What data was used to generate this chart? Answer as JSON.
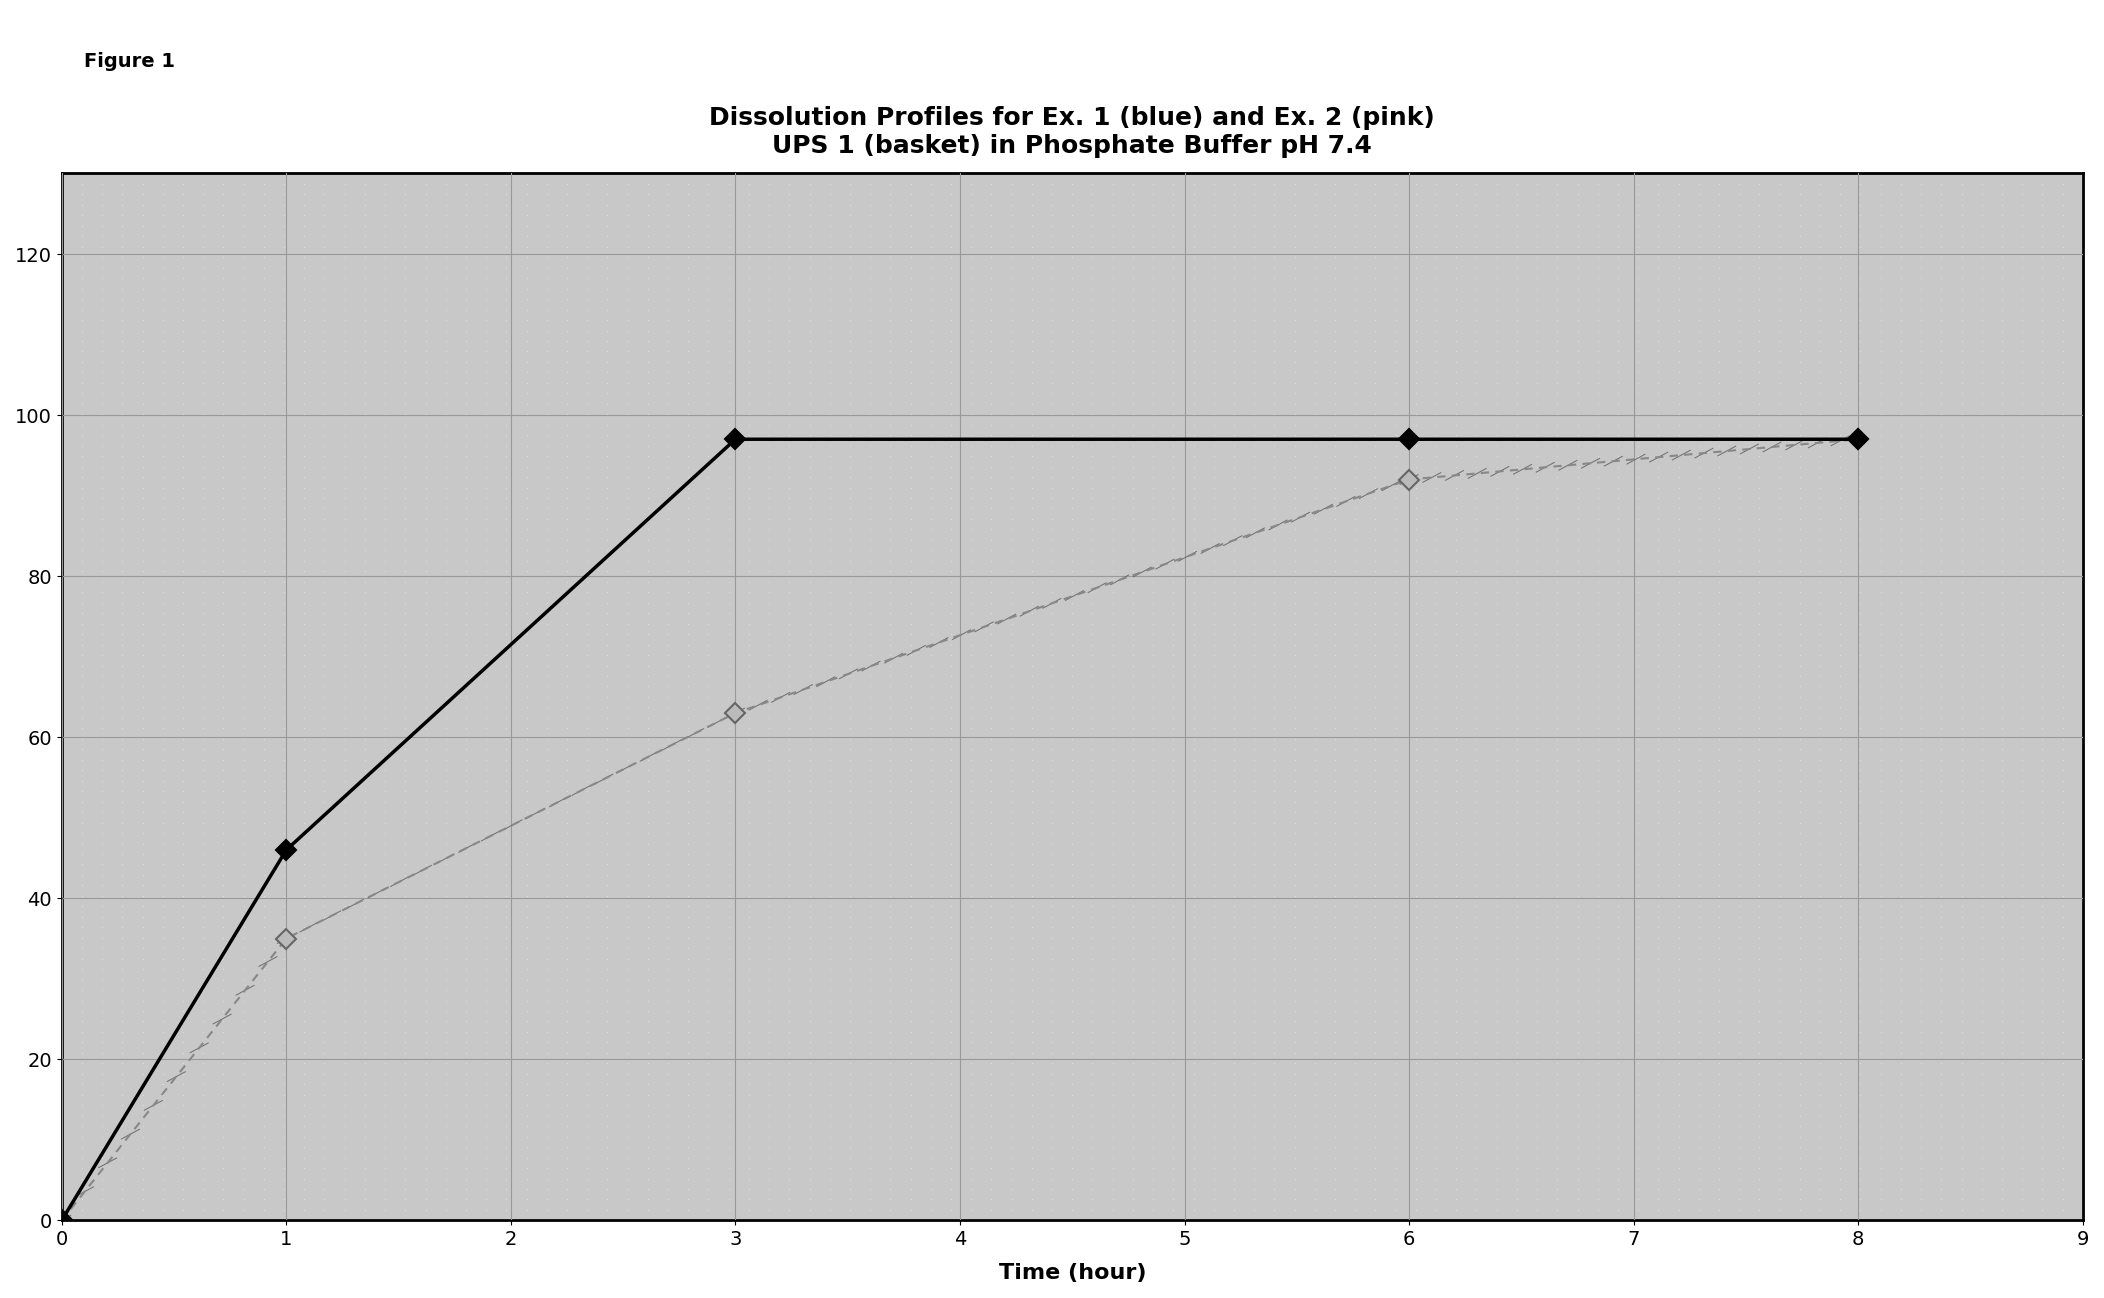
{
  "title_line1": "Dissolution Profiles for Ex. 1 (blue) and Ex. 2 (pink)",
  "title_line2": "UPS 1 (basket) in Phosphate Buffer pH 7.4",
  "xlabel": "Time (hour)",
  "figure_label": "Figure 1",
  "xlim": [
    0,
    9
  ],
  "ylim": [
    0,
    130
  ],
  "yticks": [
    0,
    20,
    40,
    60,
    80,
    100,
    120
  ],
  "xticks": [
    0,
    1,
    2,
    3,
    4,
    5,
    6,
    7,
    8,
    9
  ],
  "series1_x": [
    0,
    1,
    3,
    6,
    8
  ],
  "series1_y": [
    0,
    46,
    97,
    97,
    97
  ],
  "series2_x": [
    0,
    1,
    3,
    6,
    8
  ],
  "series2_y": [
    0,
    35,
    63,
    92,
    97
  ],
  "title_fontsize": 18,
  "label_fontsize": 16,
  "tick_fontsize": 14,
  "fig_label_fontsize": 14
}
